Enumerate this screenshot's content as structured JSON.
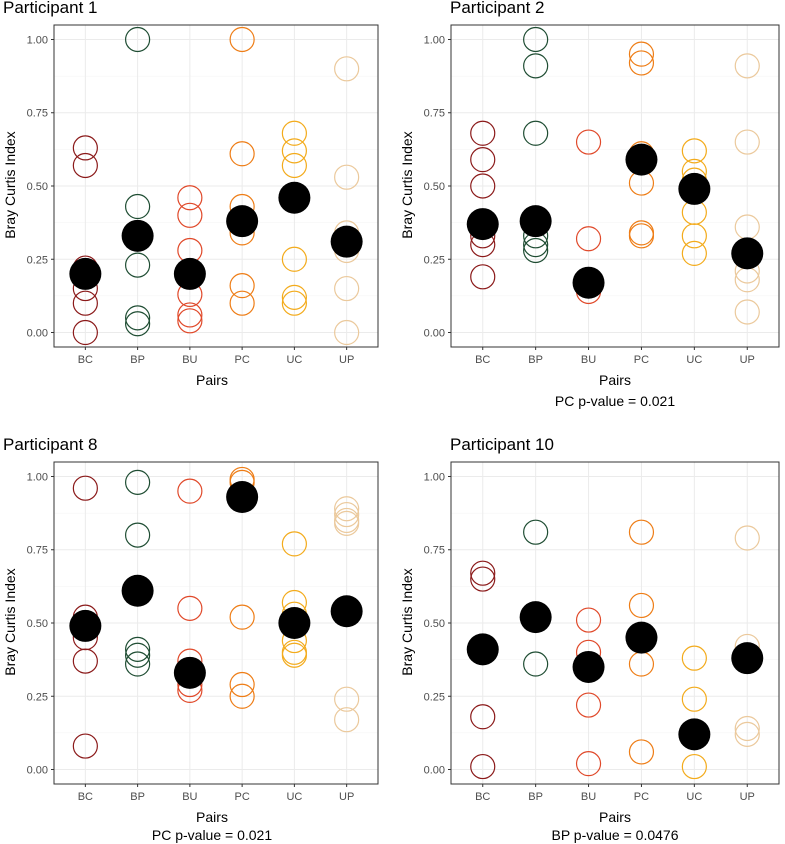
{
  "colors": {
    "BC": "#8b1a1a",
    "BP": "#1f4d33",
    "BU": "#e0492a",
    "PC": "#ee7d16",
    "UC": "#f3ab1c",
    "UP": "#ebc99c",
    "mean": "#000000"
  },
  "chart_data": [
    {
      "type": "scatter",
      "title": "Participant 1",
      "xlabel": "Pairs",
      "ylabel": "Bray Curtis Index",
      "categories": [
        "BC",
        "BP",
        "BU",
        "PC",
        "UC",
        "UP"
      ],
      "ylim": [
        0,
        1
      ],
      "yticks": [
        0.0,
        0.25,
        0.5,
        0.75,
        1.0
      ],
      "ytick_labels": [
        "0.00",
        "0.25",
        "0.50",
        "0.75",
        "1.00"
      ],
      "grid": true,
      "note": "",
      "points": {
        "BC": [
          0.63,
          0.57,
          0.22,
          0.15,
          0.1,
          0.0
        ],
        "BP": [
          1.0,
          0.43,
          0.23,
          0.05,
          0.03
        ],
        "BU": [
          0.46,
          0.4,
          0.28,
          0.13,
          0.06,
          0.04
        ],
        "PC": [
          1.0,
          0.61,
          0.43,
          0.34,
          0.16,
          0.1
        ],
        "UC": [
          0.68,
          0.62,
          0.57,
          0.25,
          0.12,
          0.1
        ],
        "UP": [
          0.9,
          0.53,
          0.34,
          0.28,
          0.15,
          0.0
        ]
      },
      "means": {
        "BC": 0.2,
        "BP": 0.33,
        "BU": 0.2,
        "PC": 0.38,
        "UC": 0.46,
        "UP": 0.31
      }
    },
    {
      "type": "scatter",
      "title": "Participant 2",
      "xlabel": "Pairs",
      "ylabel": "Bray Curtis Index",
      "categories": [
        "BC",
        "BP",
        "BU",
        "PC",
        "UC",
        "UP"
      ],
      "ylim": [
        0,
        1
      ],
      "yticks": [
        0.0,
        0.25,
        0.5,
        0.75,
        1.0
      ],
      "ytick_labels": [
        "0.00",
        "0.25",
        "0.50",
        "0.75",
        "1.00"
      ],
      "grid": true,
      "note": "PC p-value = 0.021",
      "points": {
        "BC": [
          0.68,
          0.59,
          0.5,
          0.33,
          0.3,
          0.19
        ],
        "BP": [
          1.0,
          0.91,
          0.68,
          0.33,
          0.3,
          0.28
        ],
        "BU": [
          0.65,
          0.32,
          0.14
        ],
        "PC": [
          0.95,
          0.92,
          0.61,
          0.51,
          0.34,
          0.33
        ],
        "UC": [
          0.62,
          0.55,
          0.52,
          0.41,
          0.33,
          0.27
        ],
        "UP": [
          0.91,
          0.65,
          0.36,
          0.21,
          0.18,
          0.07
        ]
      },
      "means": {
        "BC": 0.37,
        "BP": 0.38,
        "BU": 0.17,
        "PC": 0.59,
        "UC": 0.49,
        "UP": 0.27
      }
    },
    {
      "type": "scatter",
      "title": "Participant 8",
      "xlabel": "Pairs",
      "ylabel": "Bray Curtis Index",
      "categories": [
        "BC",
        "BP",
        "BU",
        "PC",
        "UC",
        "UP"
      ],
      "ylim": [
        0,
        1
      ],
      "yticks": [
        0.0,
        0.25,
        0.5,
        0.75,
        1.0
      ],
      "ytick_labels": [
        "0.00",
        "0.25",
        "0.50",
        "0.75",
        "1.00"
      ],
      "grid": true,
      "note": "PC p-value = 0.021",
      "points": {
        "BC": [
          0.96,
          0.52,
          0.5,
          0.45,
          0.37,
          0.08
        ],
        "BP": [
          0.98,
          0.8,
          0.41,
          0.39,
          0.36
        ],
        "BU": [
          0.95,
          0.55,
          0.37,
          0.32,
          0.29,
          0.27
        ],
        "PC": [
          0.99,
          0.98,
          0.52,
          0.29,
          0.25
        ],
        "UC": [
          0.77,
          0.57,
          0.53,
          0.44,
          0.4,
          0.39
        ],
        "UP": [
          0.89,
          0.87,
          0.85,
          0.84,
          0.24,
          0.17
        ]
      },
      "means": {
        "BC": 0.49,
        "BP": 0.61,
        "BU": 0.33,
        "PC": 0.93,
        "UC": 0.5,
        "UP": 0.54
      }
    },
    {
      "type": "scatter",
      "title": "Participant 10",
      "xlabel": "Pairs",
      "ylabel": "Bray Curtis Index",
      "categories": [
        "BC",
        "BP",
        "BU",
        "PC",
        "UC",
        "UP"
      ],
      "ylim": [
        0,
        1
      ],
      "yticks": [
        0.0,
        0.25,
        0.5,
        0.75,
        1.0
      ],
      "ytick_labels": [
        "0.00",
        "0.25",
        "0.50",
        "0.75",
        "1.00"
      ],
      "grid": true,
      "note": "BP p-value = 0.0476",
      "points": {
        "BC": [
          0.67,
          0.65,
          0.18,
          0.01
        ],
        "BP": [
          0.81,
          0.53,
          0.36
        ],
        "BU": [
          0.51,
          0.4,
          0.22,
          0.02
        ],
        "PC": [
          0.81,
          0.56,
          0.36,
          0.06
        ],
        "UC": [
          0.38,
          0.24,
          0.01
        ],
        "UP": [
          0.79,
          0.42,
          0.14,
          0.12
        ]
      },
      "means": {
        "BC": 0.41,
        "BP": 0.52,
        "BU": 0.35,
        "PC": 0.45,
        "UC": 0.12,
        "UP": 0.38
      }
    }
  ]
}
